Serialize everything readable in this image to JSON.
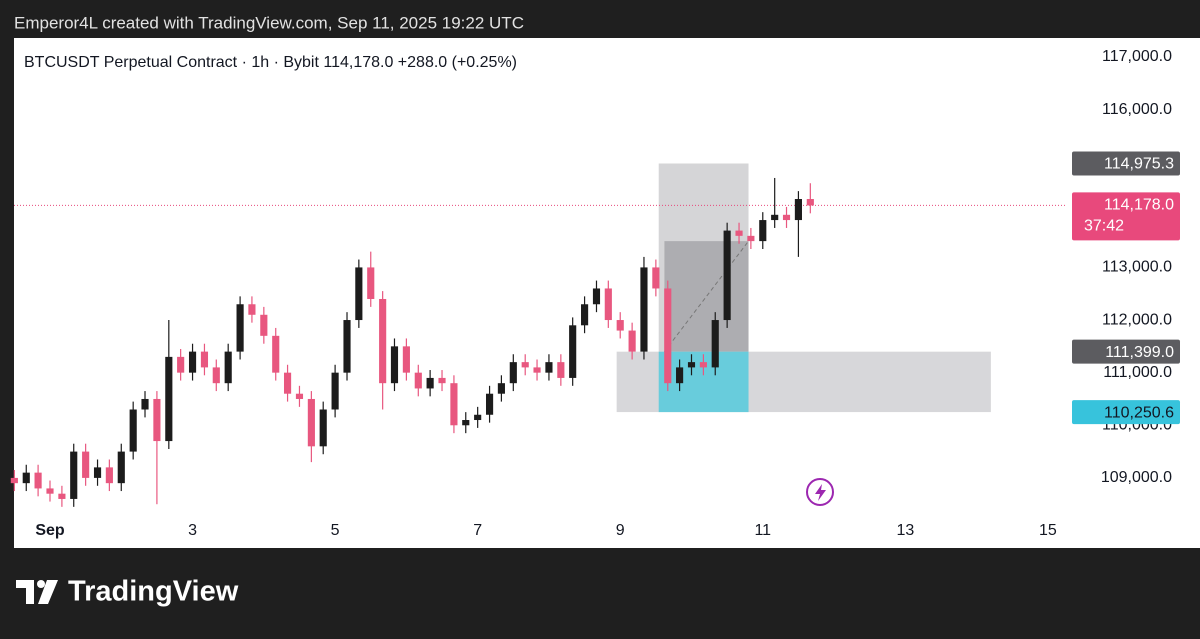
{
  "header": "Emperor4L created with TradingView.com, Sep 11, 2025 19:22 UTC",
  "footer": "TradingView",
  "chart_data": {
    "type": "candlestick",
    "title": "BTCUSDT Perpetual Contract · 1h · Bybit  114,178.0  +288.0 (+0.25%)",
    "up_color": "#1c1c1c",
    "down_color": "#e8577f",
    "xlim": [
      0.495,
      15.24
    ],
    "ylim": [
      108390,
      117360
    ],
    "xticks": [
      {
        "value": 1,
        "label": "Sep"
      },
      3,
      5,
      7,
      9,
      11,
      13,
      15
    ],
    "yticks": [
      {
        "value": 109000,
        "label": "109,000.0"
      },
      {
        "value": 110000,
        "label": "110,000.0"
      },
      {
        "value": 111000,
        "label": "111,000.0"
      },
      {
        "value": 112000,
        "label": "112,000.0"
      },
      {
        "value": 113000,
        "label": "113,000.0"
      },
      {
        "value": 116000,
        "label": "116,000.0"
      },
      {
        "value": 117000,
        "label": "117,000.0"
      }
    ],
    "x": [
      0.5,
      0.667,
      0.833,
      1,
      1.167,
      1.333,
      1.5,
      1.667,
      1.833,
      2,
      2.167,
      2.333,
      2.5,
      2.667,
      2.833,
      3,
      3.167,
      3.333,
      3.5,
      3.667,
      3.833,
      4,
      4.167,
      4.333,
      4.5,
      4.667,
      4.833,
      5,
      5.167,
      5.333,
      5.5,
      5.667,
      5.833,
      6,
      6.167,
      6.333,
      6.5,
      6.667,
      6.833,
      7,
      7.167,
      7.333,
      7.5,
      7.667,
      7.833,
      8,
      8.167,
      8.333,
      8.5,
      8.667,
      8.833,
      9,
      9.167,
      9.333,
      9.5,
      9.667,
      9.833,
      10,
      10.167,
      10.333,
      10.5,
      10.667,
      10.833,
      11,
      11.167,
      11.333,
      11.5,
      11.667
    ],
    "open": [
      109000,
      108900,
      109100,
      108800,
      108700,
      108600,
      109500,
      109000,
      109200,
      108900,
      109500,
      110300,
      110500,
      109700,
      111300,
      111000,
      111400,
      111100,
      110800,
      111400,
      112300,
      112100,
      111700,
      111000,
      110600,
      110500,
      109600,
      110300,
      111000,
      112000,
      113000,
      112400,
      110800,
      111500,
      111000,
      110700,
      110900,
      110800,
      110000,
      110100,
      110200,
      110600,
      110800,
      111200,
      111100,
      111000,
      111200,
      110900,
      111900,
      112300,
      112600,
      112000,
      111800,
      111400,
      113000,
      112600,
      110800,
      111100,
      111200,
      111100,
      112000,
      113700,
      113600,
      113500,
      113900,
      114000,
      113900,
      114300
    ],
    "high": [
      109150,
      109250,
      109250,
      108950,
      108850,
      109650,
      109650,
      109350,
      109350,
      109650,
      110450,
      110650,
      110650,
      112000,
      111450,
      111550,
      111550,
      111250,
      111550,
      112450,
      112450,
      112250,
      111850,
      111150,
      110750,
      110650,
      110450,
      111150,
      112150,
      113150,
      113300,
      112550,
      111650,
      111650,
      111150,
      111050,
      111050,
      110950,
      110250,
      110350,
      110750,
      110950,
      111350,
      111350,
      111250,
      111350,
      111350,
      112050,
      112450,
      112750,
      112750,
      112150,
      111950,
      113200,
      113150,
      112750,
      111250,
      111350,
      111350,
      112150,
      113850,
      113850,
      113750,
      114050,
      114700,
      114150,
      114450,
      114600
    ],
    "low": [
      108750,
      108750,
      108650,
      108550,
      108450,
      108450,
      108850,
      108850,
      108750,
      108750,
      109350,
      110150,
      108500,
      109550,
      110850,
      110850,
      110950,
      110650,
      110650,
      111250,
      111950,
      111550,
      110850,
      110450,
      110350,
      109300,
      109450,
      110150,
      110850,
      111850,
      112250,
      110300,
      110650,
      110850,
      110550,
      110550,
      110650,
      109850,
      109850,
      109950,
      110050,
      110450,
      110650,
      110950,
      110850,
      110850,
      110750,
      110750,
      111750,
      112150,
      111850,
      111650,
      111250,
      111250,
      112450,
      110650,
      110650,
      110950,
      110950,
      110950,
      111850,
      113450,
      113350,
      113350,
      113750,
      113750,
      113200,
      114028
    ],
    "close": [
      108900,
      109100,
      108800,
      108700,
      108600,
      109500,
      109000,
      109200,
      108900,
      109500,
      110300,
      110500,
      109700,
      111300,
      111000,
      111400,
      111100,
      110800,
      111400,
      112300,
      112100,
      111700,
      111000,
      110600,
      110500,
      109600,
      110300,
      111000,
      112000,
      113000,
      112400,
      110800,
      111500,
      111000,
      110700,
      110900,
      110800,
      110000,
      110100,
      110200,
      110600,
      110800,
      111200,
      111100,
      111000,
      111200,
      110900,
      111900,
      112300,
      112600,
      112000,
      111800,
      111400,
      113000,
      112600,
      110800,
      111100,
      111200,
      111100,
      112000,
      113700,
      113600,
      113500,
      113900,
      114000,
      113900,
      114300,
      114178
    ],
    "zones": [
      {
        "x": [
          8.95,
          14.2
        ],
        "y": [
          110250.6,
          111399.0
        ],
        "color": "#d3d3d6"
      },
      {
        "x": [
          9.54,
          10.8
        ],
        "y": [
          111399.0,
          114975.3
        ],
        "color": "#d0d0d3"
      },
      {
        "x": [
          9.62,
          10.8
        ],
        "y": [
          111399.0,
          113500
        ],
        "color": "#a9a9ad"
      },
      {
        "x": [
          9.54,
          10.8
        ],
        "y": [
          110250.6,
          111399.0
        ],
        "color": "#5ccbdc"
      }
    ],
    "price_labels": [
      {
        "value": 114975.3,
        "label": "114,975.3",
        "color": "#5c5c60"
      },
      {
        "value": 111399.0,
        "label": "111,399.0",
        "color": "#5c5c60"
      },
      {
        "value": 110250.6,
        "label": "110,250.6",
        "color": "#37c3dc"
      }
    ],
    "last_price": {
      "value": 114178.0,
      "label": "114,178.0",
      "countdown": "37:42",
      "color": "#e8497c"
    }
  }
}
